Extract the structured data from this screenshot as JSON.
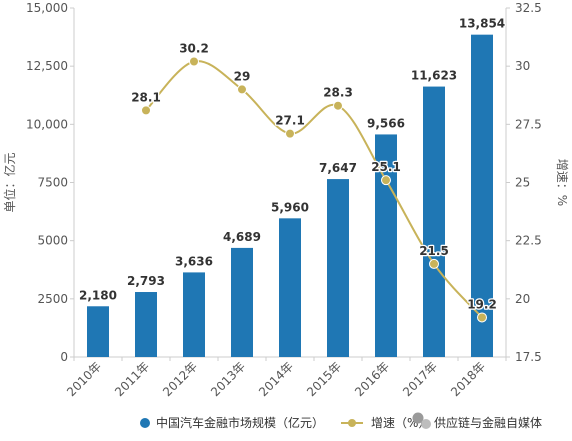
{
  "chart_data": {
    "type": "bar",
    "categories": [
      "2010年",
      "2011年",
      "2012年",
      "2013年",
      "2014年",
      "2015年",
      "2016年",
      "2017年",
      "2018年"
    ],
    "series": [
      {
        "name": "中国汽车金融市场规模（亿元）",
        "type": "bar",
        "axis": "left",
        "color": "#1f77b4",
        "values": [
          2180,
          2793,
          3636,
          4689,
          5960,
          7647,
          9566,
          11623,
          13854
        ],
        "labels": [
          "2,180",
          "2,793",
          "3,636",
          "4,689",
          "5,960",
          "7,647",
          "9,566",
          "11,623",
          "13,854"
        ]
      },
      {
        "name": "增速（%）",
        "type": "line",
        "axis": "right",
        "color": "#c8b35a",
        "values": [
          null,
          28.1,
          30.2,
          29,
          27.1,
          28.3,
          25.1,
          21.5,
          19.2
        ],
        "labels": [
          "",
          "28.1",
          "30.2",
          "29",
          "27.1",
          "28.3",
          "25.1",
          "21.5",
          "19.2"
        ]
      }
    ],
    "y_left": {
      "label": "单位：亿元",
      "ylim": [
        0,
        15000
      ],
      "ticks": [
        0,
        2500,
        5000,
        7500,
        10000,
        12500,
        15000
      ],
      "tick_labels": [
        "0",
        "2500",
        "5000",
        "7500",
        "10,000",
        "12,500",
        "15,000"
      ]
    },
    "y_right": {
      "label": "增速：%",
      "ylim": [
        17.5,
        32.5
      ],
      "ticks": [
        17.5,
        20,
        22.5,
        25,
        27.5,
        30,
        32.5
      ],
      "tick_labels": [
        "17.5",
        "20",
        "22.5",
        "25",
        "27.5",
        "30",
        "32.5"
      ]
    },
    "legend": {
      "position": "bottom",
      "items": [
        "中国汽车金融市场规模（亿元）",
        "增速（%）"
      ]
    },
    "grid": false,
    "colors": {
      "bar": "#1f77b4",
      "line": "#c8b35a",
      "axis": "#cccccc",
      "text": "#555555"
    }
  },
  "watermark": {
    "text": "供应链与金融自媒体",
    "icon": "wechat-icon"
  }
}
